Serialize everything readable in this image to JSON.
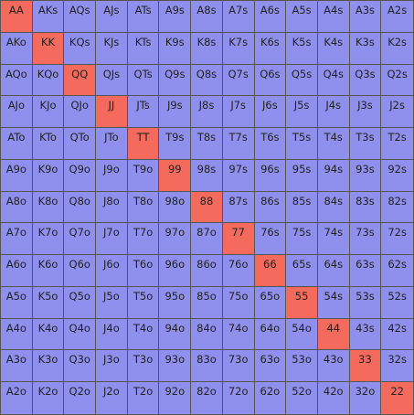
{
  "colors": {
    "default_cell": "#8f90ee",
    "pair_cell": "#f46a5d",
    "grid_line": "#555555"
  },
  "grid": [
    [
      "AA",
      "AKs",
      "AQs",
      "AJs",
      "ATs",
      "A9s",
      "A8s",
      "A7s",
      "A6s",
      "A5s",
      "A4s",
      "A3s",
      "A2s"
    ],
    [
      "AKo",
      "KK",
      "KQs",
      "KJs",
      "KTs",
      "K9s",
      "K8s",
      "K7s",
      "K6s",
      "K5s",
      "K4s",
      "K3s",
      "K2s"
    ],
    [
      "AQo",
      "KQo",
      "QQ",
      "QJs",
      "QTs",
      "Q9s",
      "Q8s",
      "Q7s",
      "Q6s",
      "Q5s",
      "Q4s",
      "Q3s",
      "Q2s"
    ],
    [
      "AJo",
      "KJo",
      "QJo",
      "JJ",
      "JTs",
      "J9s",
      "J8s",
      "J7s",
      "J6s",
      "J5s",
      "J4s",
      "J3s",
      "J2s"
    ],
    [
      "ATo",
      "KTo",
      "QTo",
      "JTo",
      "TT",
      "T9s",
      "T8s",
      "T7s",
      "T6s",
      "T5s",
      "T4s",
      "T3s",
      "T2s"
    ],
    [
      "A9o",
      "K9o",
      "Q9o",
      "J9o",
      "T9o",
      "99",
      "98s",
      "97s",
      "96s",
      "95s",
      "94s",
      "93s",
      "92s"
    ],
    [
      "A8o",
      "K8o",
      "Q8o",
      "J8o",
      "T8o",
      "98o",
      "88",
      "87s",
      "86s",
      "85s",
      "84s",
      "83s",
      "82s"
    ],
    [
      "A7o",
      "K7o",
      "Q7o",
      "J7o",
      "T7o",
      "97o",
      "87o",
      "77",
      "76s",
      "75s",
      "74s",
      "73s",
      "72s"
    ],
    [
      "A6o",
      "K6o",
      "Q6o",
      "J6o",
      "T6o",
      "96o",
      "86o",
      "76o",
      "66",
      "65s",
      "64s",
      "63s",
      "62s"
    ],
    [
      "A5o",
      "K5o",
      "Q5o",
      "J5o",
      "T5o",
      "95o",
      "85o",
      "75o",
      "65o",
      "55",
      "54s",
      "53s",
      "52s"
    ],
    [
      "A4o",
      "K4o",
      "Q4o",
      "J4o",
      "T4o",
      "94o",
      "84o",
      "74o",
      "64o",
      "54o",
      "44",
      "43s",
      "42s"
    ],
    [
      "A3o",
      "K3o",
      "Q3o",
      "J3o",
      "T3o",
      "93o",
      "83o",
      "73o",
      "63o",
      "53o",
      "43o",
      "33",
      "32s"
    ],
    [
      "A2o",
      "K2o",
      "Q2o",
      "J2o",
      "T2o",
      "92o",
      "82o",
      "72o",
      "62o",
      "52o",
      "42o",
      "32o",
      "22"
    ]
  ]
}
